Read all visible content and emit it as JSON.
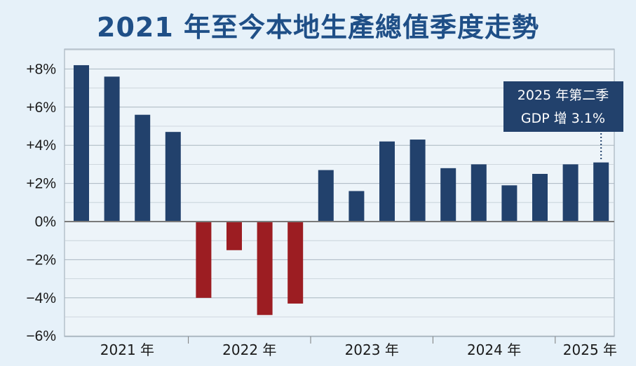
{
  "title": "2021 年至今本地生產總值季度走勢",
  "chart_data": {
    "type": "bar",
    "title": "2021 年至今本地生產總值季度走勢",
    "y_tick_labels": [
      "+8%",
      "+6%",
      "+4%",
      "+2%",
      "0%",
      "−2%",
      "−4%",
      "−6%"
    ],
    "y_ticks": [
      8,
      6,
      4,
      2,
      0,
      -2,
      -4,
      -6
    ],
    "ylim": [
      -6,
      9
    ],
    "x_group_labels": [
      "2021 年",
      "2022 年",
      "2023 年",
      "2024 年",
      "2025 年"
    ],
    "values": [
      8.2,
      7.6,
      5.6,
      4.7,
      -4.0,
      -1.5,
      -4.9,
      -4.3,
      2.7,
      1.6,
      4.2,
      4.3,
      2.8,
      3.0,
      1.9,
      2.5,
      3.0,
      3.1
    ],
    "colors": {
      "positive": "#22416c",
      "negative": "#9c1d22",
      "grid": "#aab6c0",
      "zero_line": "#7a7a7a",
      "background": "#e6f1f9",
      "title": "#1f4f87",
      "plot_bg": "#edf4f9"
    },
    "annotation": {
      "line1": "2025 年第二季",
      "line2": "GDP 增 3.1%",
      "bar_index": 17
    },
    "grid": true
  }
}
